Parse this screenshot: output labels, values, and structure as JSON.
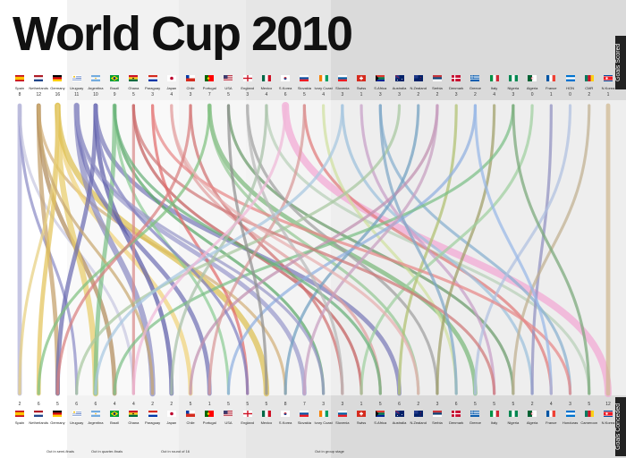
{
  "title": "World Cup 2010",
  "axis_top_label": "Goals Scored",
  "axis_bottom_label": "Goals Conceded",
  "top_teams": [
    {
      "name": "Spain",
      "value": "8",
      "flag": "spain"
    },
    {
      "name": "Netherlands",
      "value": "12",
      "flag": "netherlands"
    },
    {
      "name": "Germany",
      "value": "16",
      "flag": "germany"
    },
    {
      "name": "Uruguay",
      "value": "11",
      "flag": "uruguay"
    },
    {
      "name": "Argentina",
      "value": "10",
      "flag": "argentina"
    },
    {
      "name": "Brazil",
      "value": "9",
      "flag": "brazil"
    },
    {
      "name": "Ghana",
      "value": "5",
      "flag": "ghana"
    },
    {
      "name": "Paraguay",
      "value": "3",
      "flag": "paraguay"
    },
    {
      "name": "Japan",
      "value": "4",
      "flag": "japan"
    },
    {
      "name": "Chile",
      "value": "3",
      "flag": "chile"
    },
    {
      "name": "Portugal",
      "value": "7",
      "flag": "portugal"
    },
    {
      "name": "USA",
      "value": "5",
      "flag": "usa"
    },
    {
      "name": "England",
      "value": "3",
      "flag": "england"
    },
    {
      "name": "Mexico",
      "value": "4",
      "flag": "mexico"
    },
    {
      "name": "S.Korea",
      "value": "6",
      "flag": "skorea"
    },
    {
      "name": "Slovakia",
      "value": "5",
      "flag": "slovakia"
    },
    {
      "name": "Ivory Coast",
      "value": "4",
      "flag": "ivory"
    },
    {
      "name": "Slovenia",
      "value": "3",
      "flag": "slovenia"
    },
    {
      "name": "Swiss",
      "value": "1",
      "flag": "swiss"
    },
    {
      "name": "S.Africa",
      "value": "3",
      "flag": "safrica"
    },
    {
      "name": "Australia",
      "value": "3",
      "flag": "australia"
    },
    {
      "name": "N.Zealand",
      "value": "2",
      "flag": "nzealand"
    },
    {
      "name": "Serbia",
      "value": "2",
      "flag": "serbia"
    },
    {
      "name": "Denmark",
      "value": "3",
      "flag": "denmark"
    },
    {
      "name": "Greece",
      "value": "2",
      "flag": "greece"
    },
    {
      "name": "Italy",
      "value": "4",
      "flag": "italy"
    },
    {
      "name": "Nigeria",
      "value": "3",
      "flag": "nigeria"
    },
    {
      "name": "Algeria",
      "value": "0",
      "flag": "algeria"
    },
    {
      "name": "France",
      "value": "1",
      "flag": "france"
    },
    {
      "name": "HON",
      "value": "0",
      "flag": "honduras"
    },
    {
      "name": "CMR",
      "value": "2",
      "flag": "cameroon"
    },
    {
      "name": "N.Korea",
      "value": "1",
      "flag": "nkorea"
    }
  ],
  "bottom_teams": [
    {
      "name": "Spain",
      "value": "2",
      "flag": "spain"
    },
    {
      "name": "Netherlands",
      "value": "6",
      "flag": "netherlands"
    },
    {
      "name": "Germany",
      "value": "5",
      "flag": "germany"
    },
    {
      "name": "Uruguay",
      "value": "6",
      "flag": "uruguay"
    },
    {
      "name": "Argentina",
      "value": "6",
      "flag": "argentina"
    },
    {
      "name": "Brazil",
      "value": "4",
      "flag": "brazil"
    },
    {
      "name": "Ghana",
      "value": "4",
      "flag": "ghana"
    },
    {
      "name": "Paraguay",
      "value": "2",
      "flag": "paraguay"
    },
    {
      "name": "Japan",
      "value": "2",
      "flag": "japan"
    },
    {
      "name": "Chile",
      "value": "5",
      "flag": "chile"
    },
    {
      "name": "Portugal",
      "value": "1",
      "flag": "portugal"
    },
    {
      "name": "USA",
      "value": "5",
      "flag": "usa"
    },
    {
      "name": "England",
      "value": "5",
      "flag": "england"
    },
    {
      "name": "Mexico",
      "value": "5",
      "flag": "mexico"
    },
    {
      "name": "S.Korea",
      "value": "8",
      "flag": "skorea"
    },
    {
      "name": "Slovakia",
      "value": "7",
      "flag": "slovakia"
    },
    {
      "name": "Ivory Coast",
      "value": "3",
      "flag": "ivory"
    },
    {
      "name": "Slovenia",
      "value": "3",
      "flag": "slovenia"
    },
    {
      "name": "Swiss",
      "value": "1",
      "flag": "swiss"
    },
    {
      "name": "S.Africa",
      "value": "5",
      "flag": "safrica"
    },
    {
      "name": "Australia",
      "value": "6",
      "flag": "australia"
    },
    {
      "name": "N.Zealand",
      "value": "2",
      "flag": "nzealand"
    },
    {
      "name": "Serbia",
      "value": "3",
      "flag": "serbia"
    },
    {
      "name": "Denmark",
      "value": "6",
      "flag": "denmark"
    },
    {
      "name": "Greece",
      "value": "5",
      "flag": "greece"
    },
    {
      "name": "Italy",
      "value": "5",
      "flag": "italy"
    },
    {
      "name": "Nigeria",
      "value": "5",
      "flag": "nigeria"
    },
    {
      "name": "Algeria",
      "value": "2",
      "flag": "algeria"
    },
    {
      "name": "France",
      "value": "4",
      "flag": "france"
    },
    {
      "name": "Honduras",
      "value": "3",
      "flag": "honduras"
    },
    {
      "name": "Cameroon",
      "value": "5",
      "flag": "cameroon"
    },
    {
      "name": "N.Korea",
      "value": "12",
      "flag": "nkorea"
    }
  ],
  "stage_labels": [
    "Out in semi-finals",
    "Out in quarter-finals",
    "Out in round of 16",
    "Out in group stage"
  ],
  "colors": {
    "background": "#ffffff",
    "band_light": "#ececec",
    "band_mid": "#dcdcdc",
    "band_dark": "#c9c9c9",
    "side_label": "#222222"
  },
  "flows": [
    {
      "from": 0,
      "to": 0,
      "w": 3,
      "c": "#b0b0d8"
    },
    {
      "from": 0,
      "to": 3,
      "w": 2,
      "c": "#8c8cc6"
    },
    {
      "from": 0,
      "to": 6,
      "w": 2,
      "c": "#c8c8e0"
    },
    {
      "from": 1,
      "to": 2,
      "w": 3,
      "c": "#c4a06a"
    },
    {
      "from": 1,
      "to": 5,
      "w": 3,
      "c": "#b08a5a"
    },
    {
      "from": 1,
      "to": 14,
      "w": 2,
      "c": "#d2b07a"
    },
    {
      "from": 2,
      "to": 1,
      "w": 3,
      "c": "#e3c35a"
    },
    {
      "from": 2,
      "to": 4,
      "w": 4,
      "c": "#e8cc6a"
    },
    {
      "from": 2,
      "to": 9,
      "w": 3,
      "c": "#f0d27a"
    },
    {
      "from": 2,
      "to": 13,
      "w": 4,
      "c": "#ddbf50"
    },
    {
      "from": 3,
      "to": 7,
      "w": 4,
      "c": "#8a8ac2"
    },
    {
      "from": 3,
      "to": 10,
      "w": 3,
      "c": "#7070b4"
    },
    {
      "from": 3,
      "to": 15,
      "w": 3,
      "c": "#9a9acc"
    },
    {
      "from": 4,
      "to": 2,
      "w": 3,
      "c": "#6b6bb0"
    },
    {
      "from": 4,
      "to": 8,
      "w": 3,
      "c": "#5c5ca8"
    },
    {
      "from": 4,
      "to": 20,
      "w": 3,
      "c": "#7a7ab8"
    },
    {
      "from": 5,
      "to": 4,
      "w": 3,
      "c": "#7cbf86"
    },
    {
      "from": 5,
      "to": 16,
      "w": 2,
      "c": "#5aa868"
    },
    {
      "from": 5,
      "to": 11,
      "w": 2,
      "c": "#8ccc94"
    },
    {
      "from": 6,
      "to": 6,
      "w": 2,
      "c": "#d88a8a"
    },
    {
      "from": 6,
      "to": 18,
      "w": 2,
      "c": "#c45c5c"
    },
    {
      "from": 7,
      "to": 12,
      "w": 2,
      "c": "#e06b6b"
    },
    {
      "from": 8,
      "to": 19,
      "w": 2,
      "c": "#e0a0a0"
    },
    {
      "from": 9,
      "to": 17,
      "w": 2,
      "c": "#d07070"
    },
    {
      "from": 10,
      "to": 24,
      "w": 3,
      "c": "#7ab87a"
    },
    {
      "from": 10,
      "to": 21,
      "w": 2,
      "c": "#94c894"
    },
    {
      "from": 11,
      "to": 26,
      "w": 2,
      "c": "#6a9a6a"
    },
    {
      "from": 12,
      "to": 22,
      "w": 2,
      "c": "#a0a0a0"
    },
    {
      "from": 13,
      "to": 30,
      "w": 2,
      "c": "#b8d0b8"
    },
    {
      "from": 14,
      "to": 31,
      "w": 5,
      "c": "#f2a8d4"
    },
    {
      "from": 15,
      "to": 28,
      "w": 2,
      "c": "#e07a7a"
    },
    {
      "from": 16,
      "to": 23,
      "w": 2,
      "c": "#d0e0a0"
    },
    {
      "from": 17,
      "to": 27,
      "w": 2,
      "c": "#9cc0dc"
    },
    {
      "from": 18,
      "to": 25,
      "w": 2,
      "c": "#c8a0c8"
    },
    {
      "from": 19,
      "to": 29,
      "w": 2,
      "c": "#88b0d0"
    },
    {
      "from": 20,
      "to": 3,
      "w": 2,
      "c": "#a8c8a0"
    },
    {
      "from": 21,
      "to": 14,
      "w": 2,
      "c": "#70a0c0"
    },
    {
      "from": 22,
      "to": 9,
      "w": 2,
      "c": "#c090b0"
    },
    {
      "from": 23,
      "to": 20,
      "w": 2,
      "c": "#b0c070"
    },
    {
      "from": 24,
      "to": 11,
      "w": 2,
      "c": "#90b0e0"
    },
    {
      "from": 25,
      "to": 22,
      "w": 2,
      "c": "#a0a068"
    },
    {
      "from": 26,
      "to": 5,
      "w": 2,
      "c": "#7cbf86"
    },
    {
      "from": 27,
      "to": 18,
      "w": 2,
      "c": "#a0d0a0"
    },
    {
      "from": 28,
      "to": 27,
      "w": 2,
      "c": "#9090c0"
    },
    {
      "from": 29,
      "to": 24,
      "w": 2,
      "c": "#b0c0e0"
    },
    {
      "from": 30,
      "to": 26,
      "w": 2,
      "c": "#c0b090"
    },
    {
      "from": 31,
      "to": 31,
      "w": 3,
      "c": "#d0b890"
    },
    {
      "from": 2,
      "to": 0,
      "w": 2,
      "c": "#e8d080"
    },
    {
      "from": 1,
      "to": 7,
      "w": 2,
      "c": "#c8a870"
    },
    {
      "from": 4,
      "to": 12,
      "w": 2,
      "c": "#8080c0"
    },
    {
      "from": 3,
      "to": 16,
      "w": 2,
      "c": "#9898c8"
    },
    {
      "from": 5,
      "to": 19,
      "w": 2,
      "c": "#68b078"
    },
    {
      "from": 6,
      "to": 25,
      "w": 2,
      "c": "#d07878"
    },
    {
      "from": 7,
      "to": 29,
      "w": 2,
      "c": "#e88888"
    },
    {
      "from": 10,
      "to": 1,
      "w": 2,
      "c": "#80c080"
    },
    {
      "from": 13,
      "to": 8,
      "w": 2,
      "c": "#a8c0a8"
    },
    {
      "from": 15,
      "to": 10,
      "w": 2,
      "c": "#d89898"
    },
    {
      "from": 17,
      "to": 4,
      "w": 2,
      "c": "#a8c8e0"
    },
    {
      "from": 19,
      "to": 23,
      "w": 2,
      "c": "#80a8c8"
    },
    {
      "from": 22,
      "to": 15,
      "w": 2,
      "c": "#c8a0c0"
    },
    {
      "from": 24,
      "to": 28,
      "w": 2,
      "c": "#98b8e8"
    },
    {
      "from": 26,
      "to": 30,
      "w": 2,
      "c": "#78a878"
    },
    {
      "from": 11,
      "to": 13,
      "w": 2,
      "c": "#909090"
    },
    {
      "from": 12,
      "to": 17,
      "w": 2,
      "c": "#b8b8b8"
    },
    {
      "from": 8,
      "to": 21,
      "w": 2,
      "c": "#e8b0b0"
    },
    {
      "from": 9,
      "to": 2,
      "w": 2,
      "c": "#d88080"
    },
    {
      "from": 14,
      "to": 6,
      "w": 2,
      "c": "#f0b8d8"
    }
  ]
}
